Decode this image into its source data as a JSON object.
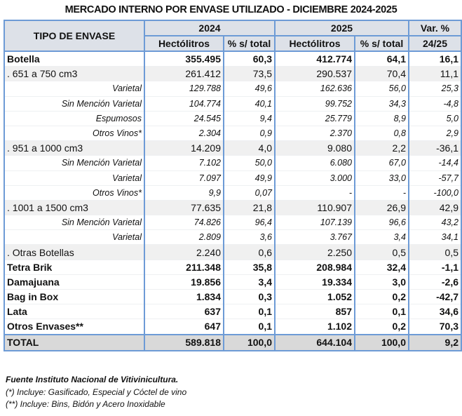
{
  "title": "MERCADO INTERNO POR ENVASE UTILIZADO - DICIEMBRE 2024-2025",
  "header": {
    "tipo": "TIPO DE ENVASE",
    "y2024": "2024",
    "y2025": "2025",
    "var_line1": "Var. %",
    "var_line2": "24/25",
    "hl": "Hectólitros",
    "pct": "% s/ total"
  },
  "rows": [
    {
      "type": "bold",
      "label": "Botella",
      "v": [
        "355.495",
        "60,3",
        "412.774",
        "64,1",
        "16,1"
      ]
    },
    {
      "type": "sub",
      "label": ". 651 a 750 cm3",
      "v": [
        "261.412",
        "73,5",
        "290.537",
        "70,4",
        "11,1"
      ]
    },
    {
      "type": "detail",
      "label": "Varietal",
      "v": [
        "129.788",
        "49,6",
        "162.636",
        "56,0",
        "25,3"
      ]
    },
    {
      "type": "detail",
      "label": "Sin Mención Varietal",
      "v": [
        "104.774",
        "40,1",
        "99.752",
        "34,3",
        "-4,8"
      ]
    },
    {
      "type": "detail",
      "label": "Espumosos",
      "v": [
        "24.545",
        "9,4",
        "25.779",
        "8,9",
        "5,0"
      ]
    },
    {
      "type": "detail",
      "label": "Otros Vinos*",
      "v": [
        "2.304",
        "0,9",
        "2.370",
        "0,8",
        "2,9"
      ]
    },
    {
      "type": "sub",
      "label": ". 951 a 1000 cm3",
      "v": [
        "14.209",
        "4,0",
        "9.080",
        "2,2",
        "-36,1"
      ]
    },
    {
      "type": "detail",
      "label": "Sin Mención Varietal",
      "v": [
        "7.102",
        "50,0",
        "6.080",
        "67,0",
        "-14,4"
      ]
    },
    {
      "type": "detail",
      "label": "Varietal",
      "v": [
        "7.097",
        "49,9",
        "3.000",
        "33,0",
        "-57,7"
      ]
    },
    {
      "type": "detail",
      "label": "Otros Vinos*",
      "v": [
        "9,9",
        "0,07",
        "-",
        "-",
        "-100,0"
      ]
    },
    {
      "type": "sub",
      "label": ". 1001 a 1500 cm3",
      "v": [
        "77.635",
        "21,8",
        "110.907",
        "26,9",
        "42,9"
      ]
    },
    {
      "type": "detail",
      "label": "Sin Mención Varietal",
      "v": [
        "74.826",
        "96,4",
        "107.139",
        "96,6",
        "43,2"
      ]
    },
    {
      "type": "detail",
      "label": "Varietal",
      "v": [
        "2.809",
        "3,6",
        "3.767",
        "3,4",
        "34,1"
      ]
    },
    {
      "type": "sub",
      "label": ". Otras Botellas",
      "v": [
        "2.240",
        "0,6",
        "2.250",
        "0,5",
        "0,5"
      ]
    },
    {
      "type": "bold",
      "label": "Tetra Brik",
      "v": [
        "211.348",
        "35,8",
        "208.984",
        "32,4",
        "-1,1"
      ]
    },
    {
      "type": "bold",
      "label": "Damajuana",
      "v": [
        "19.856",
        "3,4",
        "19.334",
        "3,0",
        "-2,6"
      ]
    },
    {
      "type": "bold",
      "label": "Bag in Box",
      "v": [
        "1.834",
        "0,3",
        "1.052",
        "0,2",
        "-42,7"
      ]
    },
    {
      "type": "bold",
      "label": "Lata",
      "v": [
        "637",
        "0,1",
        "857",
        "0,1",
        "34,6"
      ]
    },
    {
      "type": "bold",
      "label": "Otros Envases**",
      "v": [
        "647",
        "0,1",
        "1.102",
        "0,2",
        "70,3"
      ]
    },
    {
      "type": "total",
      "label": "TOTAL",
      "v": [
        "589.818",
        "100,0",
        "644.104",
        "100,0",
        "9,2"
      ]
    }
  ],
  "notes": [
    "Fuente Instituto Nacional de Vitivinicultura.",
    "(*) Incluye: Gasificado, Especial y Cóctel de vino",
    "(**) Incluye: Bins, Bidón y Acero Inoxidable"
  ]
}
